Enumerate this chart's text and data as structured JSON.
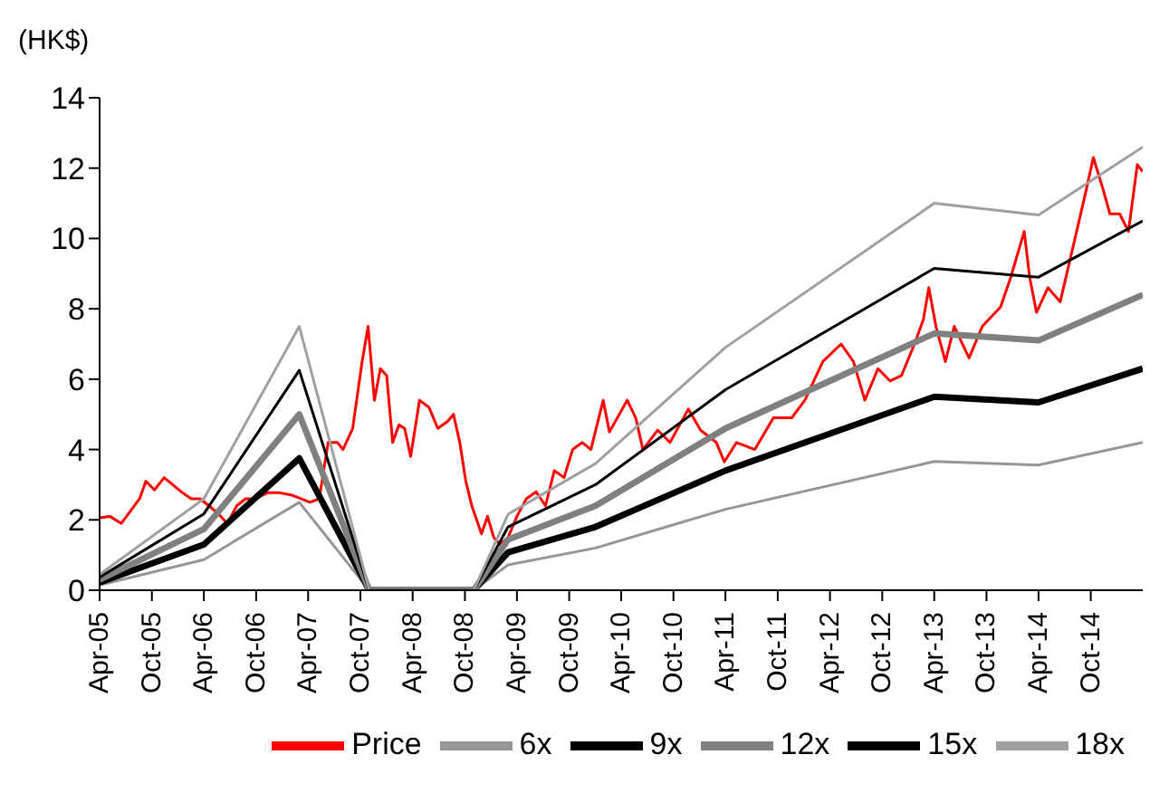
{
  "chart_data": {
    "type": "line",
    "ylabel": "(HK$)",
    "xlim": [
      "2005-04-01",
      "2015-04-01"
    ],
    "xticks": [
      {
        "value": "2005-04-01",
        "label": "Apr-05"
      },
      {
        "value": "2005-10-01",
        "label": "Oct-05"
      },
      {
        "value": "2006-04-01",
        "label": "Apr-06"
      },
      {
        "value": "2006-10-01",
        "label": "Oct-06"
      },
      {
        "value": "2007-04-01",
        "label": "Apr-07"
      },
      {
        "value": "2007-10-01",
        "label": "Oct-07"
      },
      {
        "value": "2008-04-01",
        "label": "Apr-08"
      },
      {
        "value": "2008-10-01",
        "label": "Oct-08"
      },
      {
        "value": "2009-04-01",
        "label": "Apr-09"
      },
      {
        "value": "2009-10-01",
        "label": "Oct-09"
      },
      {
        "value": "2010-04-01",
        "label": "Apr-10"
      },
      {
        "value": "2010-10-01",
        "label": "Oct-10"
      },
      {
        "value": "2011-04-01",
        "label": "Apr-11"
      },
      {
        "value": "2011-10-01",
        "label": "Oct-11"
      },
      {
        "value": "2012-04-01",
        "label": "Apr-12"
      },
      {
        "value": "2012-10-01",
        "label": "Oct-12"
      },
      {
        "value": "2013-04-01",
        "label": "Apr-13"
      },
      {
        "value": "2013-10-01",
        "label": "Oct-13"
      },
      {
        "value": "2014-04-01",
        "label": "Apr-14"
      },
      {
        "value": "2014-10-01",
        "label": "Oct-14"
      }
    ],
    "ylim": [
      0,
      14
    ],
    "yticks": [
      0,
      2,
      4,
      6,
      8,
      10,
      12,
      14
    ],
    "grid": false,
    "legend": "bottom",
    "marker": "none",
    "series": [
      {
        "name": "Price",
        "color": "#ff0000",
        "x": [
          "2005-04-01",
          "2005-05-07",
          "2005-06-16",
          "2005-08-19",
          "2005-09-10",
          "2005-10-10",
          "2005-11-13",
          "2006-01-16",
          "2006-02-16",
          "2006-03-19",
          "2006-04-19",
          "2006-05-22",
          "2006-06-22",
          "2006-07-25",
          "2006-08-25",
          "2006-09-28",
          "2006-11-10",
          "2006-12-22",
          "2007-02-04",
          "2007-03-07",
          "2007-04-07",
          "2007-05-10",
          "2007-06-10",
          "2007-07-13",
          "2007-08-01",
          "2007-09-04",
          "2007-10-07",
          "2007-10-28",
          "2007-11-19",
          "2007-12-10",
          "2008-01-01",
          "2008-01-22",
          "2008-02-13",
          "2008-03-04",
          "2008-03-25",
          "2008-04-25",
          "2008-05-28",
          "2008-06-28",
          "2008-08-01",
          "2008-08-22",
          "2008-09-13",
          "2008-10-04",
          "2008-10-25",
          "2008-11-28",
          "2008-12-19",
          "2009-01-10",
          "2009-02-01",
          "2009-03-01",
          "2009-04-01",
          "2009-05-04",
          "2009-06-07",
          "2009-07-10",
          "2009-08-10",
          "2009-09-13",
          "2009-10-13",
          "2009-11-16",
          "2009-12-16",
          "2010-01-28",
          "2010-02-19",
          "2010-04-22",
          "2010-05-22",
          "2010-06-16",
          "2010-08-07",
          "2010-09-19",
          "2010-11-22",
          "2011-01-04",
          "2011-02-28",
          "2011-03-28",
          "2011-05-10",
          "2011-07-13",
          "2011-09-16",
          "2011-11-19",
          "2012-01-04",
          "2012-03-07",
          "2012-05-10",
          "2012-06-22",
          "2012-08-01",
          "2012-09-16",
          "2012-10-28",
          "2012-12-07",
          "2013-01-22",
          "2013-02-22",
          "2013-03-13",
          "2013-04-07",
          "2013-05-10",
          "2013-06-10",
          "2013-08-01",
          "2013-09-16",
          "2013-11-19",
          "2013-12-25",
          "2014-02-10",
          "2014-03-01",
          "2014-03-25",
          "2014-05-04",
          "2014-06-16",
          "2014-08-01",
          "2014-09-10",
          "2014-10-10",
          "2014-11-13",
          "2014-12-07",
          "2015-01-10",
          "2015-02-10",
          "2015-03-13",
          "2015-04-01"
        ],
        "values": [
          2.06,
          2.1,
          1.9,
          2.6,
          3.1,
          2.85,
          3.2,
          2.77,
          2.6,
          2.6,
          2.4,
          2.17,
          1.9,
          2.4,
          2.6,
          2.6,
          2.77,
          2.77,
          2.7,
          2.6,
          2.5,
          2.6,
          4.2,
          4.2,
          4.0,
          4.6,
          6.5,
          7.5,
          5.4,
          6.3,
          6.1,
          4.2,
          4.7,
          4.6,
          3.8,
          5.4,
          5.2,
          4.6,
          4.8,
          5.0,
          4.2,
          3.1,
          2.4,
          1.6,
          2.1,
          1.5,
          1.3,
          1.5,
          2.1,
          2.6,
          2.8,
          2.4,
          3.4,
          3.2,
          4.0,
          4.2,
          4.0,
          5.4,
          4.5,
          5.4,
          4.9,
          4.0,
          4.55,
          4.2,
          5.15,
          4.55,
          4.2,
          3.65,
          4.2,
          4.0,
          4.9,
          4.9,
          5.4,
          6.5,
          7.0,
          6.5,
          5.4,
          6.3,
          5.95,
          6.1,
          7.0,
          7.7,
          8.6,
          7.5,
          6.5,
          7.5,
          6.6,
          7.5,
          8.05,
          8.9,
          10.2,
          8.9,
          7.9,
          8.6,
          8.2,
          9.8,
          11.2,
          12.3,
          11.4,
          10.7,
          10.7,
          10.2,
          12.1,
          11.9
        ]
      },
      {
        "name": "6x",
        "color": "#969696",
        "x": [
          "2005-04-01",
          "2006-04-01",
          "2007-03-01",
          "2007-11-01",
          "2008-11-01",
          "2009-03-01",
          "2010-01-01",
          "2011-04-01",
          "2013-04-01",
          "2014-04-01",
          "2015-04-01"
        ],
        "values": [
          0.15,
          0.87,
          2.5,
          0,
          0,
          0.72,
          1.2,
          2.3,
          3.66,
          3.56,
          4.2
        ]
      },
      {
        "name": "9x",
        "color": "#000000",
        "x": [
          "2005-04-01",
          "2006-04-01",
          "2007-03-01",
          "2007-11-01",
          "2008-11-01",
          "2009-03-01",
          "2010-01-01",
          "2011-04-01",
          "2013-04-01",
          "2014-04-01",
          "2015-04-01"
        ],
        "values": [
          0.22,
          1.3,
          3.75,
          0,
          0,
          1.08,
          1.8,
          3.4,
          5.5,
          5.34,
          6.3
        ]
      },
      {
        "name": "12x",
        "color": "#808080",
        "x": [
          "2005-04-01",
          "2006-04-01",
          "2007-03-01",
          "2007-11-01",
          "2008-11-01",
          "2009-03-01",
          "2010-01-01",
          "2011-04-01",
          "2013-04-01",
          "2014-04-01",
          "2015-04-01"
        ],
        "values": [
          0.3,
          1.74,
          5.0,
          0,
          0,
          1.44,
          2.4,
          4.6,
          7.3,
          7.1,
          8.4
        ]
      },
      {
        "name": "15x",
        "color": "#000000",
        "x": [
          "2005-04-01",
          "2006-04-01",
          "2007-03-01",
          "2007-11-01",
          "2008-11-01",
          "2009-03-01",
          "2010-01-01",
          "2011-04-01",
          "2013-04-01",
          "2014-04-01",
          "2015-04-01"
        ],
        "values": [
          0.37,
          2.17,
          6.25,
          0,
          0,
          1.8,
          3.0,
          5.7,
          9.15,
          8.9,
          10.5
        ]
      },
      {
        "name": "18x",
        "color": "#a0a0a0",
        "x": [
          "2005-04-01",
          "2006-04-01",
          "2007-03-01",
          "2007-11-01",
          "2008-11-01",
          "2009-03-01",
          "2010-01-01",
          "2011-04-01",
          "2013-04-01",
          "2014-04-01",
          "2015-04-01"
        ],
        "values": [
          0.45,
          2.6,
          7.5,
          0,
          0,
          2.16,
          3.6,
          6.9,
          11.0,
          10.67,
          12.6
        ]
      }
    ]
  }
}
